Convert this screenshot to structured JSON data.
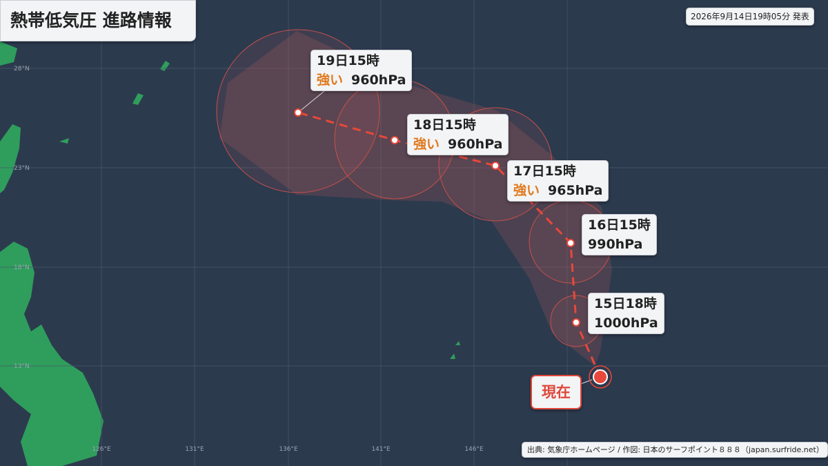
{
  "header": {
    "title": "熱帯低気圧 進路情報",
    "issued": "2026年9月14日19時05分 発表"
  },
  "grid": {
    "lat": [
      "28°N",
      "23°N",
      "18°N",
      "13°N"
    ],
    "lon": [
      "126°E",
      "131°E",
      "136°E",
      "141°E",
      "146°E"
    ]
  },
  "forecasts": [
    {
      "time": "15日18時",
      "pressure": "1000hPa"
    },
    {
      "time": "16日15時",
      "pressure": "990hPa"
    },
    {
      "time": "17日15時",
      "intensity": "強い",
      "pressure": "965hPa"
    },
    {
      "time": "18日15時",
      "intensity": "強い",
      "pressure": "960hPa"
    },
    {
      "time": "19日15時",
      "intensity": "強い",
      "pressure": "960hPa"
    }
  ],
  "current": "現在",
  "credit": "出典: 気象庁ホームページ / 作図: 日本のサーフポイント８８８（japan.surfride.net）"
}
